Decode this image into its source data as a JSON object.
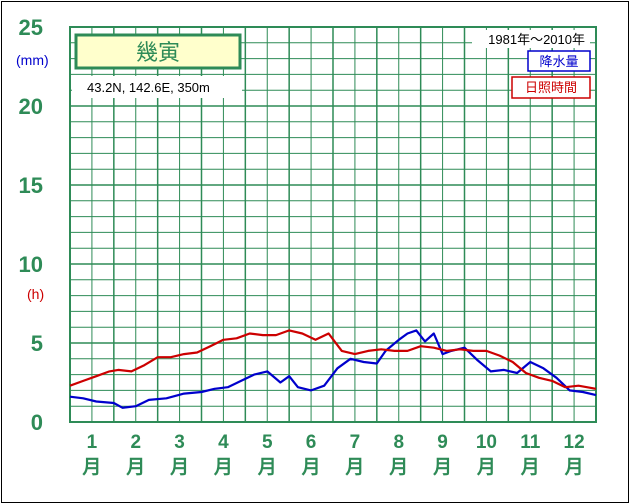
{
  "station": {
    "name": "幾寅",
    "info": "43.2N,  142.6E,  350m"
  },
  "period": "1981年〜2010年",
  "legend": {
    "precip": "降水量",
    "sunshine": "日照時間"
  },
  "colors": {
    "grid": "#2e8b57",
    "precip": "#0000cc",
    "sunshine": "#cc0000",
    "title_bg": "#ffffcc"
  },
  "chart_data": {
    "type": "line",
    "y_ticks": [
      "25",
      "20",
      "15",
      "10",
      "5",
      "0"
    ],
    "y_unit_precip": "(mm)",
    "y_unit_sunshine": "(h)",
    "ylim": [
      0,
      25
    ],
    "months": [
      {
        "num": "1",
        "unit": "月"
      },
      {
        "num": "2",
        "unit": "月"
      },
      {
        "num": "3",
        "unit": "月"
      },
      {
        "num": "4",
        "unit": "月"
      },
      {
        "num": "5",
        "unit": "月"
      },
      {
        "num": "6",
        "unit": "月"
      },
      {
        "num": "7",
        "unit": "月"
      },
      {
        "num": "8",
        "unit": "月"
      },
      {
        "num": "9",
        "unit": "月"
      },
      {
        "num": "10",
        "unit": "月"
      },
      {
        "num": "11",
        "unit": "月"
      },
      {
        "num": "12",
        "unit": "月"
      }
    ],
    "series": [
      {
        "name": "降水量",
        "x": [
          0.0,
          0.3,
          0.6,
          1.0,
          1.2,
          1.5,
          1.8,
          2.2,
          2.6,
          3.0,
          3.3,
          3.6,
          3.9,
          4.2,
          4.5,
          4.8,
          5.0,
          5.2,
          5.5,
          5.8,
          6.1,
          6.4,
          6.7,
          7.0,
          7.2,
          7.5,
          7.7,
          7.9,
          8.1,
          8.3,
          8.5,
          8.7,
          9.0,
          9.3,
          9.6,
          9.9,
          10.2,
          10.5,
          10.8,
          11.1,
          11.4,
          11.7,
          12.0
        ],
        "values": [
          1.6,
          1.5,
          1.3,
          1.2,
          0.9,
          1.0,
          1.4,
          1.5,
          1.8,
          1.9,
          2.1,
          2.2,
          2.6,
          3.0,
          3.2,
          2.5,
          2.9,
          2.2,
          2.0,
          2.3,
          3.4,
          4.0,
          3.8,
          3.7,
          4.5,
          5.2,
          5.6,
          5.8,
          5.1,
          5.6,
          4.3,
          4.5,
          4.7,
          3.9,
          3.2,
          3.3,
          3.1,
          3.8,
          3.4,
          2.8,
          2.0,
          1.9,
          1.7
        ]
      },
      {
        "name": "日照時間",
        "x": [
          0.0,
          0.3,
          0.6,
          0.9,
          1.1,
          1.4,
          1.7,
          2.0,
          2.3,
          2.6,
          2.9,
          3.2,
          3.5,
          3.8,
          4.1,
          4.4,
          4.7,
          5.0,
          5.3,
          5.6,
          5.9,
          6.2,
          6.5,
          6.8,
          7.1,
          7.4,
          7.7,
          8.0,
          8.3,
          8.6,
          8.9,
          9.2,
          9.5,
          9.8,
          10.1,
          10.4,
          10.7,
          11.0,
          11.3,
          11.6,
          12.0
        ],
        "values": [
          2.3,
          2.6,
          2.9,
          3.2,
          3.3,
          3.2,
          3.6,
          4.1,
          4.1,
          4.3,
          4.4,
          4.8,
          5.2,
          5.3,
          5.6,
          5.5,
          5.5,
          5.8,
          5.6,
          5.2,
          5.6,
          4.5,
          4.3,
          4.5,
          4.6,
          4.5,
          4.5,
          4.8,
          4.7,
          4.5,
          4.6,
          4.5,
          4.5,
          4.2,
          3.8,
          3.1,
          2.8,
          2.6,
          2.2,
          2.3,
          2.1
        ]
      }
    ]
  }
}
